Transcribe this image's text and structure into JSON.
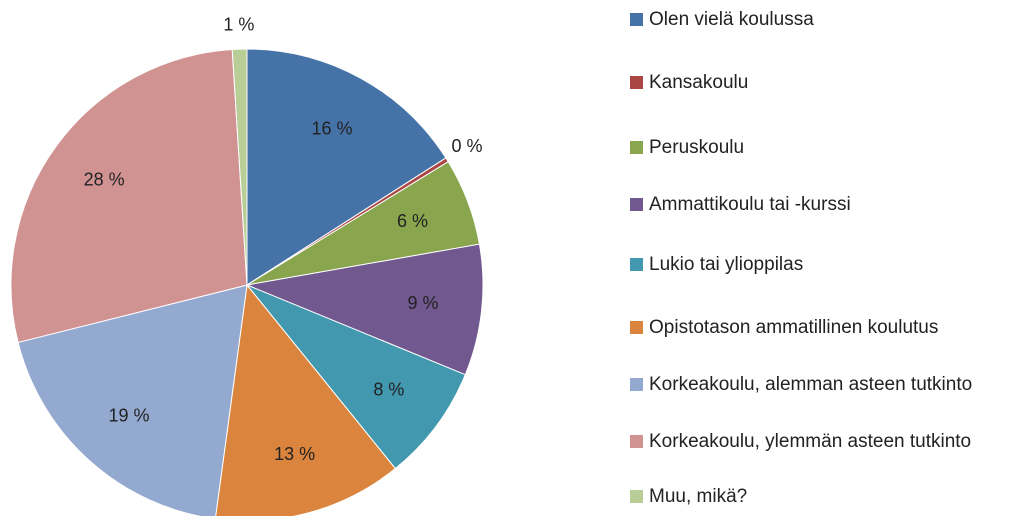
{
  "chart_data": {
    "type": "pie",
    "categories": [
      "Olen vielä koulussa",
      "Kansakoulu",
      "Peruskoulu",
      "Ammattikoulu tai -kurssi",
      "Lukio tai ylioppilas",
      "Opistotason ammatillinen koulutus",
      "Korkeakoulu, alemman asteen tutkinto",
      "Korkeakoulu, ylemmän asteen tutkinto",
      "Muu, mikä?"
    ],
    "values": [
      16,
      0.3,
      6,
      9,
      8,
      13,
      19,
      28,
      1
    ],
    "value_labels": [
      "16 %",
      "0 %",
      "6 %",
      "9 %",
      "8 %",
      "13 %",
      "19 %",
      "28 %",
      "1 %"
    ],
    "colors": [
      "#4572a7",
      "#aa4643",
      "#89a54e",
      "#71588f",
      "#4198af",
      "#db843d",
      "#93a9cf",
      "#d19392",
      "#b9cd96"
    ]
  }
}
